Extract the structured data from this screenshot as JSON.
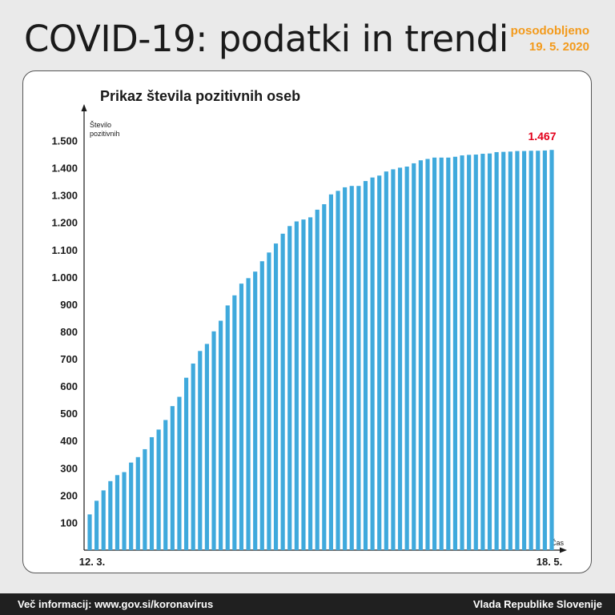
{
  "header": {
    "title": "COVID-19: podatki in trendi",
    "updated_label": "posodobljeno",
    "updated_date": "19. 5. 2020",
    "accent_color": "#f39a1b"
  },
  "chart_data": {
    "type": "bar",
    "title": "Prikaz števila pozitivnih oseb",
    "ylabel": "Število pozitivnih",
    "ylabel_lines": [
      "Število",
      "pozitivnih"
    ],
    "xlabel": "Čas",
    "x_start_label": "12. 3.",
    "x_end_label": "18. 5.",
    "ylim": [
      0,
      1500
    ],
    "yticks": [
      100,
      200,
      300,
      400,
      500,
      600,
      700,
      800,
      900,
      1000,
      1100,
      1200,
      1300,
      1400,
      1500
    ],
    "ytick_labels": [
      "100",
      "200",
      "300",
      "400",
      "500",
      "600",
      "700",
      "800",
      "900",
      "1.000",
      "1.100",
      "1.200",
      "1.300",
      "1.400",
      "1.500"
    ],
    "last_value_label": "1.467",
    "bar_color": "#3fa9dc",
    "highlight_color": "#e3001b",
    "grid": false,
    "values": [
      131,
      181,
      219,
      253,
      275,
      286,
      321,
      341,
      370,
      414,
      442,
      477,
      528,
      562,
      632,
      684,
      730,
      756,
      802,
      841,
      897,
      934,
      977,
      997,
      1021,
      1059,
      1091,
      1124,
      1160,
      1188,
      1205,
      1212,
      1220,
      1248,
      1268,
      1304,
      1317,
      1330,
      1335,
      1335,
      1353,
      1366,
      1373,
      1388,
      1396,
      1402,
      1406,
      1418,
      1429,
      1434,
      1439,
      1439,
      1439,
      1442,
      1447,
      1449,
      1450,
      1453,
      1454,
      1459,
      1460,
      1461,
      1463,
      1463,
      1464,
      1464,
      1465,
      1467
    ]
  },
  "footer": {
    "left_text": "Več informacij: www.gov.si/koronavirus",
    "right_text": "Vlada Republike Slovenije"
  }
}
